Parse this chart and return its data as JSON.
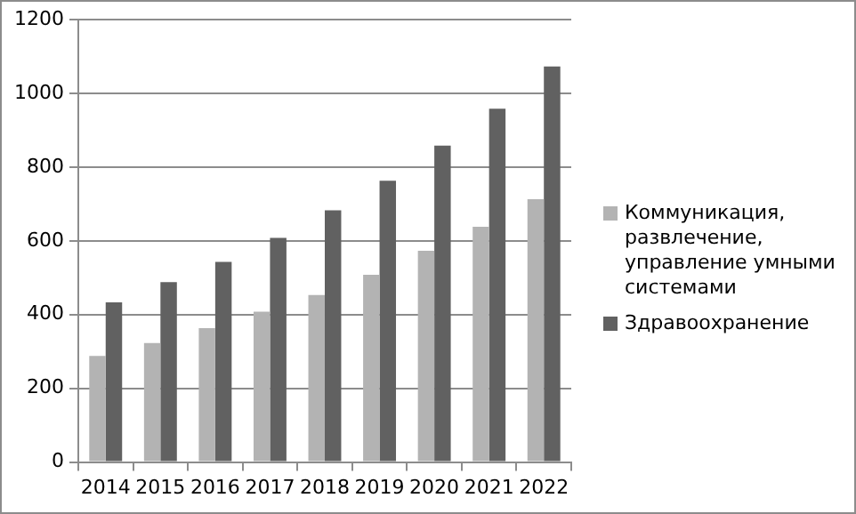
{
  "chart_data": {
    "type": "bar",
    "categories": [
      "2014",
      "2015",
      "2016",
      "2017",
      "2018",
      "2019",
      "2020",
      "2021",
      "2022"
    ],
    "series": [
      {
        "name": "Коммуникация, развлечение, управление умными системами",
        "color": "#b3b3b3",
        "values": [
          288,
          323,
          363,
          408,
          453,
          508,
          573,
          638,
          713
        ]
      },
      {
        "name": "Здравоохранение",
        "color": "#616161",
        "values": [
          433,
          488,
          543,
          608,
          683,
          763,
          858,
          958,
          1073
        ]
      }
    ],
    "ylim": [
      0,
      1200
    ],
    "yticks": [
      0,
      200,
      400,
      600,
      800,
      1000,
      1200
    ],
    "grid": "y",
    "legend": "right"
  }
}
